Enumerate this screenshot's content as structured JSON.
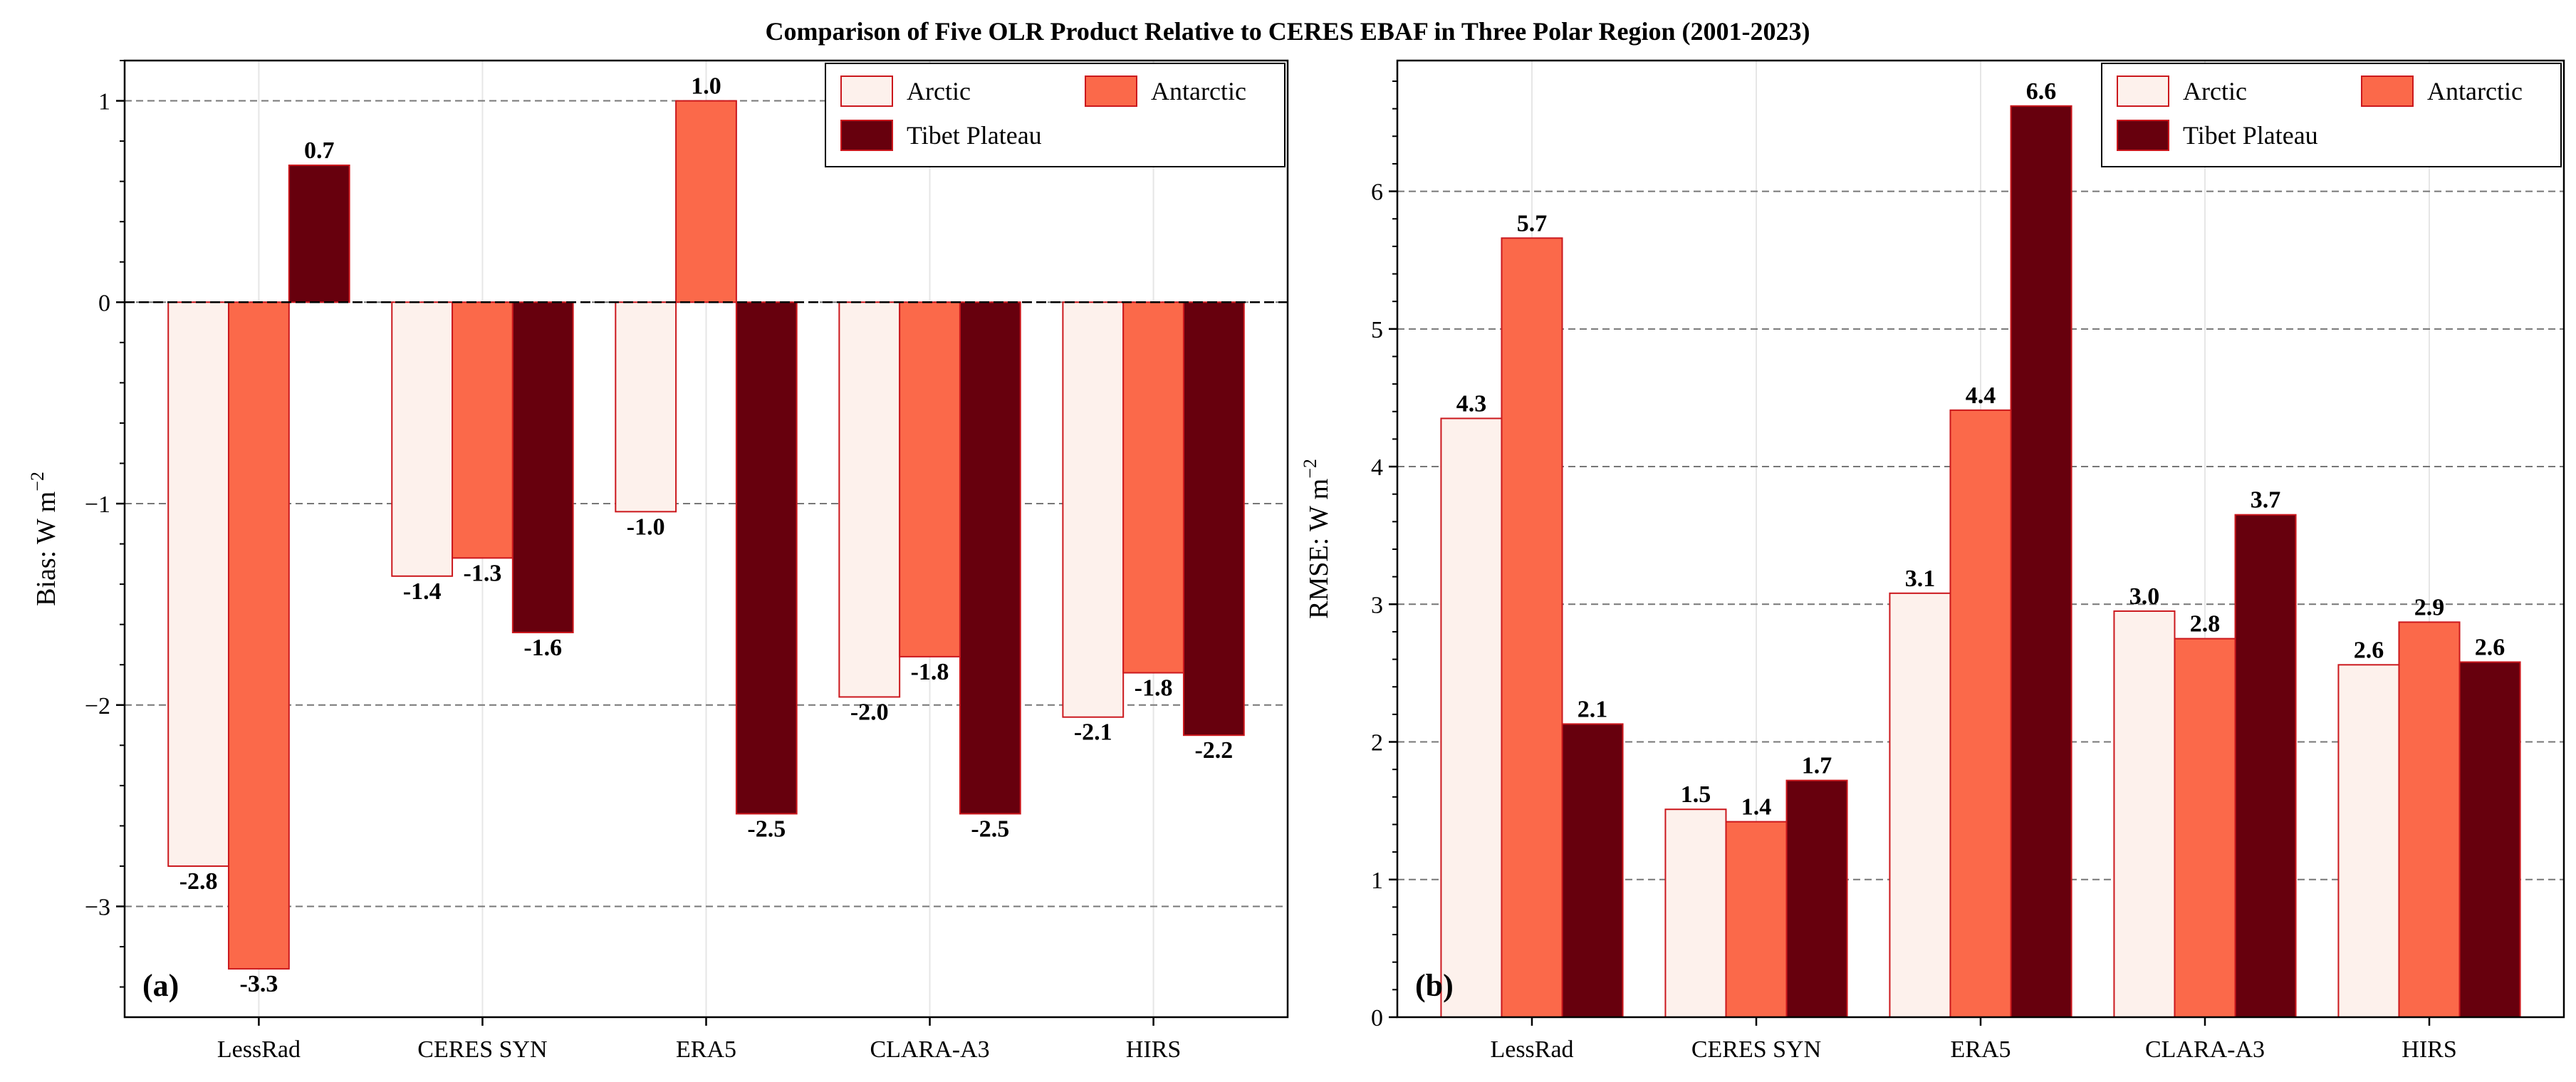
{
  "figure": {
    "title": "Comparison of Five OLR Product Relative to CERES EBAF in Three Polar Region (2001-2023)"
  },
  "colors": {
    "Arctic": "#fdf1ec",
    "Antarctic": "#fb694a",
    "Tibet Plateau": "#67000d",
    "edge": "#cb181d"
  },
  "chart_data": [
    {
      "type": "bar",
      "panel_label": "(a)",
      "ylabel": "Bias: W m",
      "ylabel_sup": "−2",
      "categories": [
        "LessRad",
        "CERES SYN",
        "ERA5",
        "CLARA-A3",
        "HIRS"
      ],
      "series": [
        {
          "name": "Arctic",
          "values": [
            -2.8,
            -1.36,
            -1.04,
            -1.96,
            -2.06
          ],
          "labels": [
            "-2.8",
            "-1.4",
            "-1.0",
            "-2.0",
            "-2.1"
          ]
        },
        {
          "name": "Antarctic",
          "values": [
            -3.31,
            -1.27,
            1.0,
            -1.76,
            -1.84
          ],
          "labels": [
            "-3.3",
            "-1.3",
            "1.0",
            "-1.8",
            "-1.8"
          ]
        },
        {
          "name": "Tibet Plateau",
          "values": [
            0.68,
            -1.64,
            -2.54,
            -2.54,
            -2.15
          ],
          "labels": [
            "0.7",
            "-1.6",
            "-2.5",
            "-2.5",
            "-2.2"
          ]
        }
      ],
      "ylim": [
        -3.55,
        1.2
      ],
      "yticks": [
        -3,
        -2,
        -1,
        0,
        1
      ],
      "ytick_labels": [
        "−3",
        "−2",
        "−1",
        "0",
        "1"
      ],
      "grid": "horizontal dashed at major ticks",
      "zero_line": true,
      "legend": {
        "placement": "top-right",
        "columns": 2
      }
    },
    {
      "type": "bar",
      "panel_label": "(b)",
      "ylabel": "RMSE: W m",
      "ylabel_sup": "−2",
      "categories": [
        "LessRad",
        "CERES SYN",
        "ERA5",
        "CLARA-A3",
        "HIRS"
      ],
      "series": [
        {
          "name": "Arctic",
          "values": [
            4.35,
            1.51,
            3.08,
            2.95,
            2.56
          ],
          "labels": [
            "4.3",
            "1.5",
            "3.1",
            "3.0",
            "2.6"
          ]
        },
        {
          "name": "Antarctic",
          "values": [
            5.66,
            1.42,
            4.41,
            2.75,
            2.87
          ],
          "labels": [
            "5.7",
            "1.4",
            "4.4",
            "2.8",
            "2.9"
          ]
        },
        {
          "name": "Tibet Plateau",
          "values": [
            2.13,
            1.72,
            6.62,
            3.65,
            2.58
          ],
          "labels": [
            "2.1",
            "1.7",
            "6.6",
            "3.7",
            "2.6"
          ]
        }
      ],
      "ylim": [
        0,
        6.95
      ],
      "yticks": [
        0,
        1,
        2,
        3,
        4,
        5,
        6
      ],
      "ytick_labels": [
        "0",
        "1",
        "2",
        "3",
        "4",
        "5",
        "6"
      ],
      "grid": "horizontal dashed at major ticks",
      "zero_line": false,
      "legend": {
        "placement": "top-right",
        "columns": 2
      }
    }
  ]
}
